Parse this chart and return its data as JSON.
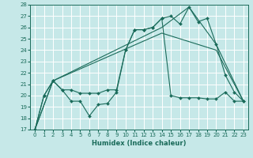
{
  "xlabel": "Humidex (Indice chaleur)",
  "background_color": "#c6e8e8",
  "grid_color": "#ffffff",
  "line_color": "#1a6b5a",
  "xlim": [
    -0.5,
    23.5
  ],
  "ylim": [
    17,
    28
  ],
  "xticks": [
    0,
    1,
    2,
    3,
    4,
    5,
    6,
    7,
    8,
    9,
    10,
    11,
    12,
    13,
    14,
    15,
    16,
    17,
    18,
    19,
    20,
    21,
    22,
    23
  ],
  "yticks": [
    17,
    18,
    19,
    20,
    21,
    22,
    23,
    24,
    25,
    26,
    27,
    28
  ],
  "line1_x": [
    0,
    1,
    2,
    3,
    4,
    5,
    6,
    7,
    8,
    9,
    10,
    11,
    12,
    13,
    14,
    15,
    16,
    17,
    18,
    19,
    20,
    21,
    22,
    23
  ],
  "line1_y": [
    17.0,
    20.0,
    21.3,
    20.5,
    19.5,
    19.5,
    18.2,
    19.2,
    19.3,
    20.3,
    24.0,
    25.8,
    25.8,
    26.0,
    26.8,
    20.0,
    19.8,
    19.8,
    19.8,
    19.7,
    19.7,
    20.3,
    19.5,
    19.5
  ],
  "line2_x": [
    0,
    1,
    2,
    3,
    4,
    5,
    6,
    7,
    8,
    9,
    10,
    11,
    12,
    13,
    14,
    15,
    16,
    17,
    18,
    19,
    20,
    21,
    22,
    23
  ],
  "line2_y": [
    17.0,
    20.0,
    21.3,
    20.5,
    20.5,
    20.2,
    20.2,
    20.2,
    20.5,
    20.5,
    24.0,
    25.8,
    25.8,
    26.0,
    26.8,
    27.0,
    26.3,
    27.8,
    26.5,
    26.8,
    24.5,
    21.8,
    20.3,
    19.5
  ],
  "line3_x": [
    0,
    2,
    14,
    17,
    20,
    23
  ],
  "line3_y": [
    17.0,
    21.3,
    26.0,
    27.8,
    24.5,
    19.5
  ],
  "line4_x": [
    0,
    2,
    14,
    20,
    23
  ],
  "line4_y": [
    17.0,
    21.3,
    25.5,
    24.0,
    19.5
  ]
}
